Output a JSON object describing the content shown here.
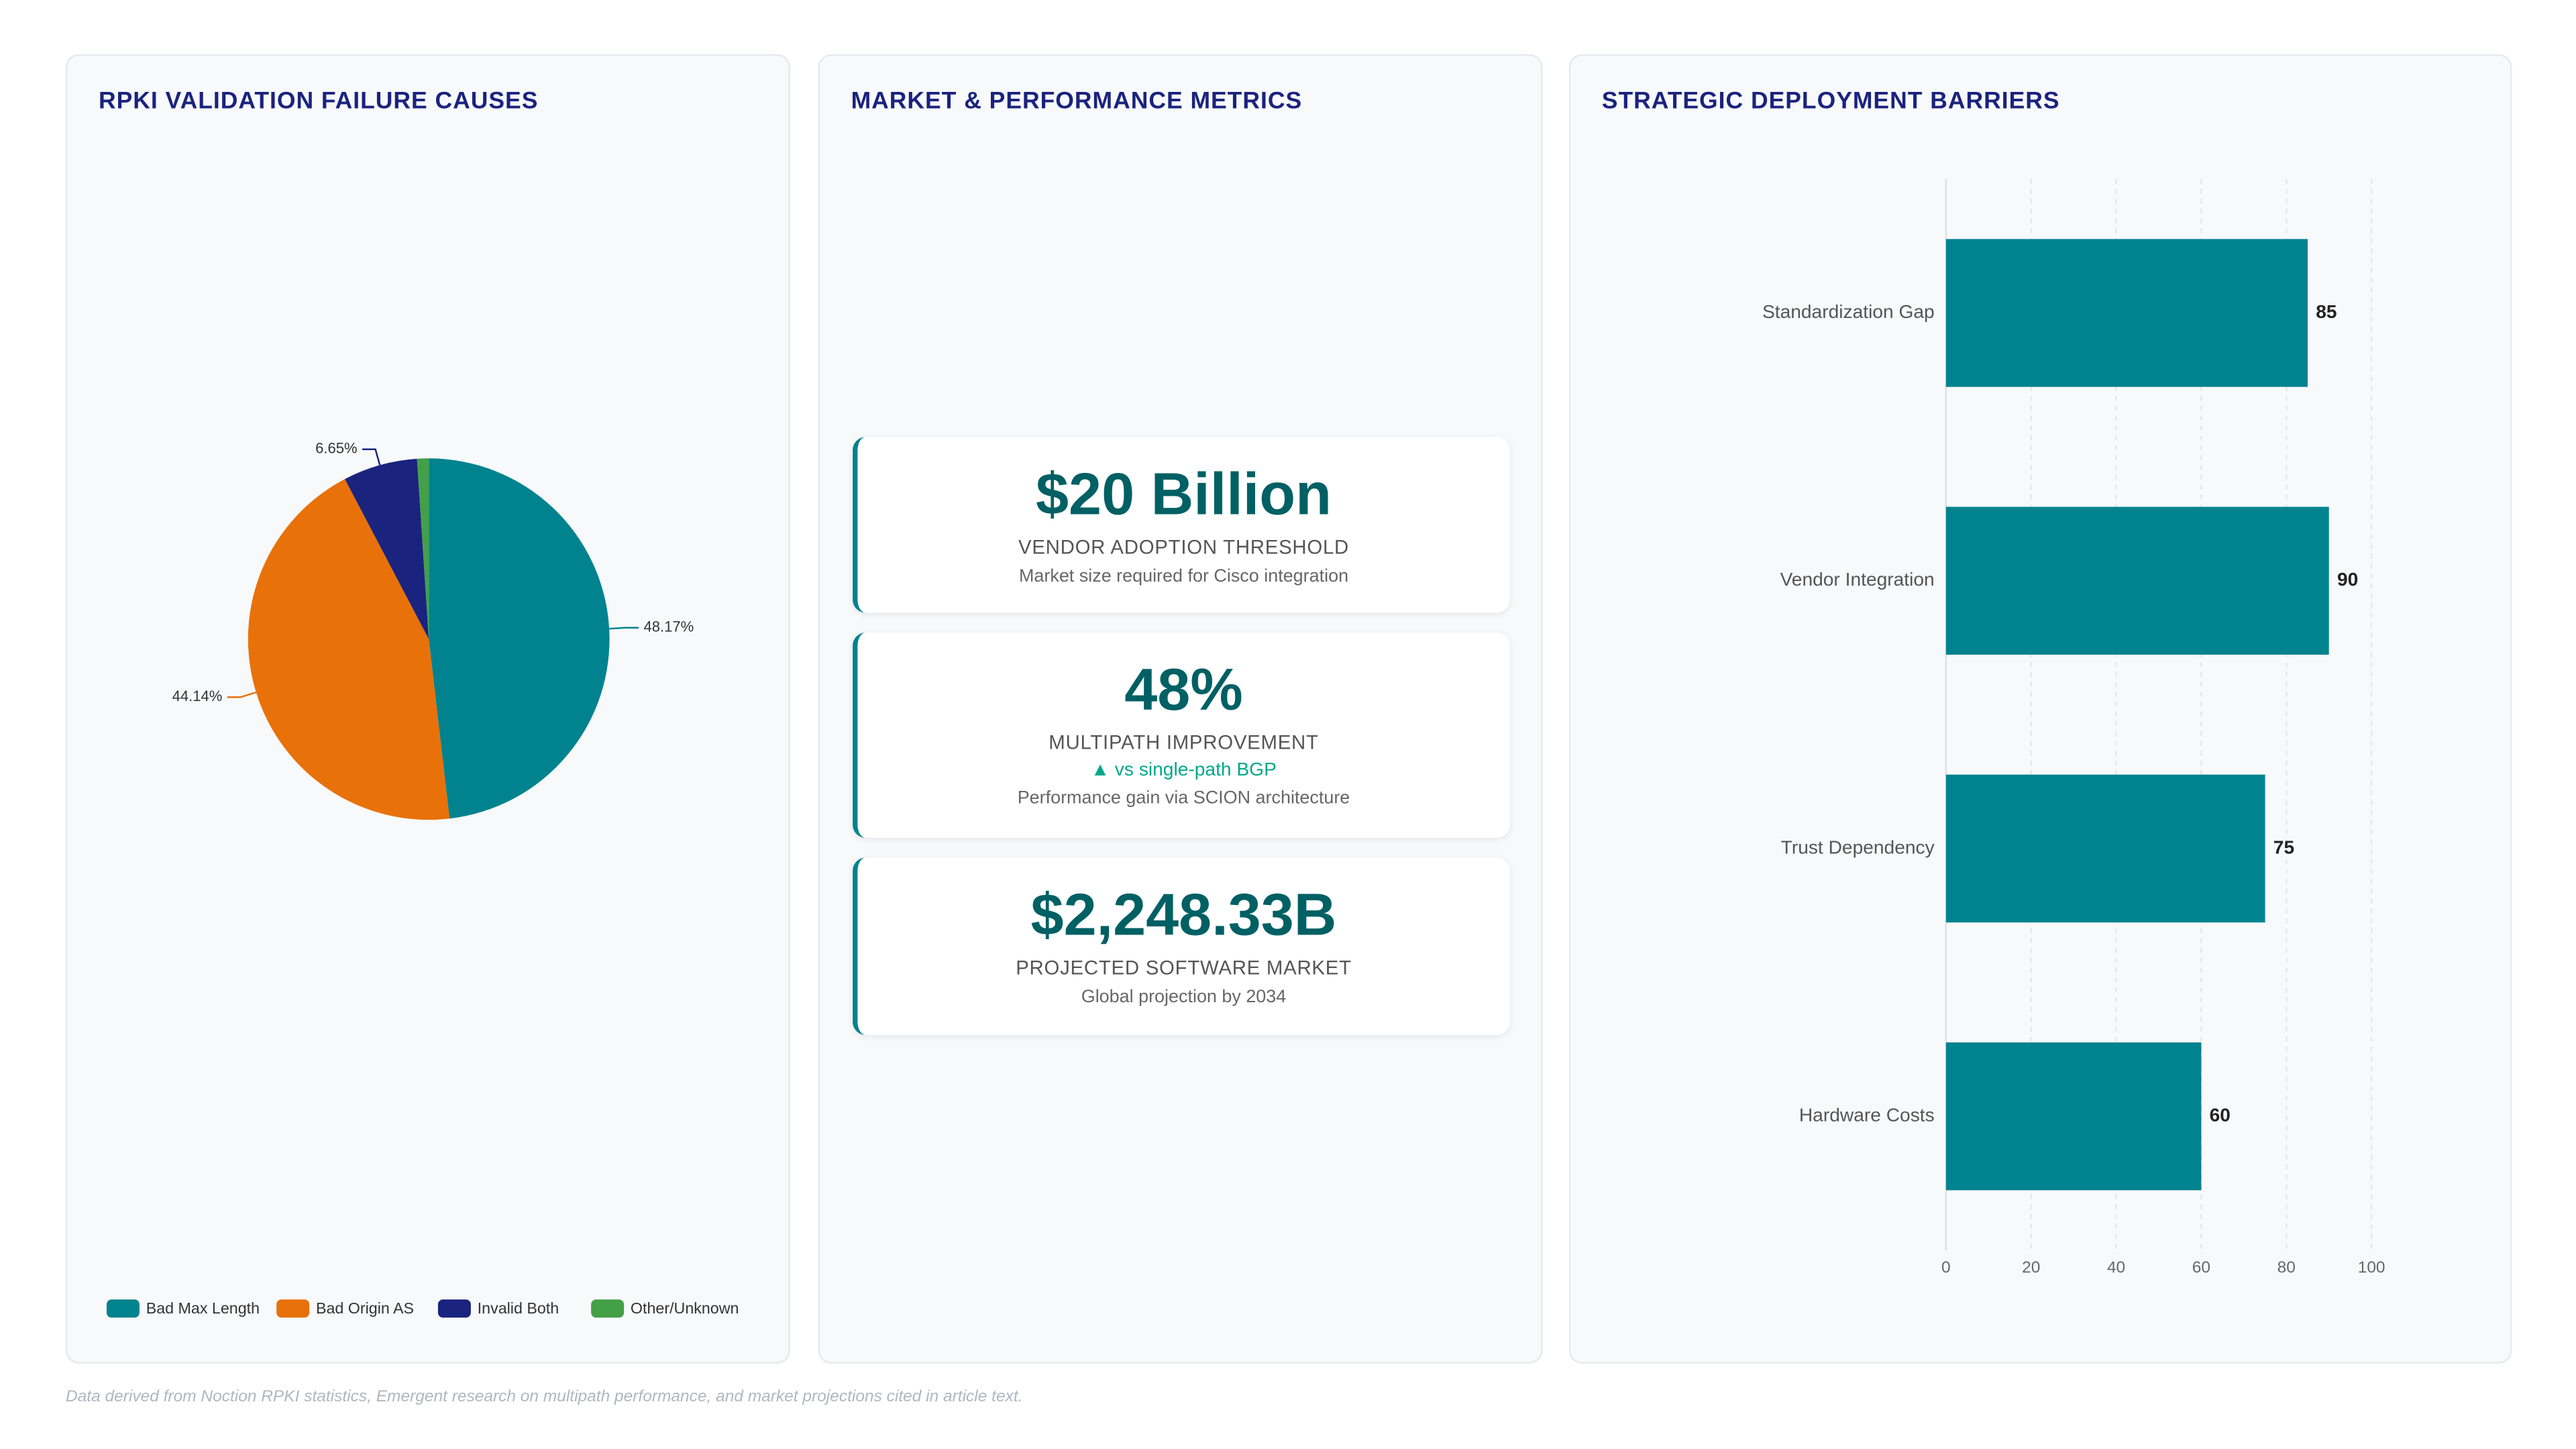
{
  "chart_data": [
    {
      "type": "pie",
      "title": "RPKI VALIDATION FAILURE CAUSES",
      "categories": [
        "Bad Max Length",
        "Bad Origin AS",
        "Invalid Both",
        "Other/Unknown"
      ],
      "values": [
        48.17,
        44.14,
        6.65,
        1.04
      ],
      "value_labels": [
        "48.17%",
        "44.14%",
        "6.65%",
        null
      ],
      "colors": [
        "#00838f",
        "#e8710a",
        "#1a237e",
        "#43a047"
      ],
      "legend": "bottom"
    },
    {
      "type": "hbar",
      "title": "STRATEGIC DEPLOYMENT BARRIERS",
      "categories": [
        "Standardization Gap",
        "Vendor Integration",
        "Trust Dependency",
        "Hardware Costs"
      ],
      "values": [
        85,
        90,
        75,
        60
      ],
      "color": "#00838f",
      "xlim": [
        0,
        100
      ],
      "xticks": [
        0,
        20,
        40,
        60,
        80,
        100
      ],
      "grid": true
    }
  ],
  "metrics": {
    "title": "MARKET & PERFORMANCE METRICS",
    "cards": [
      {
        "value": "$20 Billion",
        "label": "VENDOR ADOPTION THRESHOLD",
        "note": "Market size required for Cisco integration"
      },
      {
        "value": "48%",
        "label": "MULTIPATH IMPROVEMENT",
        "trend": "▲ vs single-path BGP",
        "note": "Performance gain via SCION architecture"
      },
      {
        "value": "$2,248.33B",
        "label": "PROJECTED SOFTWARE MARKET",
        "note": "Global projection by 2034"
      }
    ]
  },
  "footnote": "Data derived from Noction RPKI statistics, Emergent research on multipath performance, and market projections cited in article text."
}
